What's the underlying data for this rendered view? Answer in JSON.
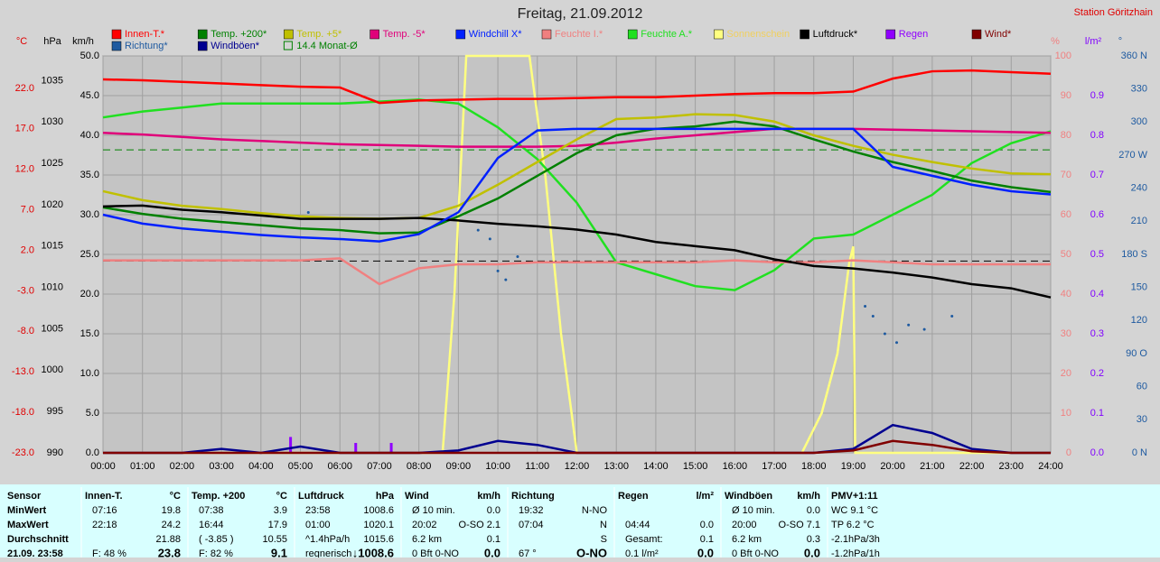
{
  "chart_data": {
    "type": "line",
    "title": "Freitag, 21.09.2012",
    "station": "Station Göritzhain",
    "xlim": [
      0,
      24
    ],
    "xticks": [
      {
        "value": 0,
        "label": "00:00"
      },
      {
        "value": 1,
        "label": "01:00"
      },
      {
        "value": 2,
        "label": "02:00"
      },
      {
        "value": 3,
        "label": "03:00"
      },
      {
        "value": 4,
        "label": "04:00"
      },
      {
        "value": 5,
        "label": "05:00"
      },
      {
        "value": 6,
        "label": "06:00"
      },
      {
        "value": 7,
        "label": "07:00"
      },
      {
        "value": 8,
        "label": "08:00"
      },
      {
        "value": 9,
        "label": "09:00"
      },
      {
        "value": 10,
        "label": "10:00"
      },
      {
        "value": 11,
        "label": "11:00"
      },
      {
        "value": 12,
        "label": "12:00"
      },
      {
        "value": 13,
        "label": "13:00"
      },
      {
        "value": 14,
        "label": "14:00"
      },
      {
        "value": 15,
        "label": "15:00"
      },
      {
        "value": 16,
        "label": "16:00"
      },
      {
        "value": 17,
        "label": "17:00"
      },
      {
        "value": 18,
        "label": "18:00"
      },
      {
        "value": 19,
        "label": "19:00"
      },
      {
        "value": 20,
        "label": "20:00"
      },
      {
        "value": 21,
        "label": "21:00"
      },
      {
        "value": 22,
        "label": "22:00"
      },
      {
        "value": 23,
        "label": "23:00"
      },
      {
        "value": 24,
        "label": "24:00"
      }
    ],
    "x": [
      0,
      1,
      2,
      3,
      4,
      5,
      6,
      7,
      8,
      9,
      10,
      11,
      12,
      13,
      14,
      15,
      16,
      17,
      18,
      19,
      20,
      21,
      22,
      23,
      24
    ],
    "grid": true,
    "grid_axis": 2,
    "axes": [
      {
        "unit": "°C",
        "side": "left",
        "color": "#e00000",
        "ylim": [
          -23,
          26
        ],
        "yticks": [
          {
            "value": -23,
            "label": "-23.0"
          },
          {
            "value": -18,
            "label": "-18.0"
          },
          {
            "value": -13,
            "label": "-13.0"
          },
          {
            "value": -8,
            "label": "-8.0"
          },
          {
            "value": -3,
            "label": "-3.0"
          },
          {
            "value": 2,
            "label": "2.0"
          },
          {
            "value": 7,
            "label": "7.0"
          },
          {
            "value": 12,
            "label": "12.0"
          },
          {
            "value": 17,
            "label": "17.0"
          },
          {
            "value": 22,
            "label": "22.0"
          }
        ]
      },
      {
        "unit": "hPa",
        "side": "left",
        "color": "#000000",
        "ylim": [
          990,
          1038
        ],
        "yticks": [
          990,
          995,
          1000,
          1005,
          1010,
          1015,
          1020,
          1025,
          1030,
          1035
        ]
      },
      {
        "unit": "km/h",
        "side": "left",
        "color": "#000000",
        "ylim": [
          0,
          50
        ],
        "yticks": [
          {
            "value": 0,
            "label": "0.0"
          },
          {
            "value": 5,
            "label": "5.0"
          },
          {
            "value": 10,
            "label": "10.0"
          },
          {
            "value": 15,
            "label": "15.0"
          },
          {
            "value": 20,
            "label": "20.0"
          },
          {
            "value": 25,
            "label": "25.0"
          },
          {
            "value": 30,
            "label": "30.0"
          },
          {
            "value": 35,
            "label": "35.0"
          },
          {
            "value": 40,
            "label": "40.0"
          },
          {
            "value": 45,
            "label": "45.0"
          },
          {
            "value": 50,
            "label": "50.0"
          }
        ]
      },
      {
        "unit": "%",
        "side": "right",
        "color": "#f08080",
        "ylim": [
          0,
          100
        ],
        "yticks": [
          0,
          10,
          20,
          30,
          40,
          50,
          60,
          70,
          80,
          90,
          100
        ]
      },
      {
        "unit": "l/m²",
        "side": "right",
        "color": "#8000ff",
        "ylim": [
          0,
          1
        ],
        "yticks": [
          {
            "value": 0,
            "label": "0.0"
          },
          0.1,
          0.2,
          0.3,
          0.4,
          0.5,
          0.6,
          0.7,
          0.8,
          0.9
        ]
      },
      {
        "unit": "°",
        "side": "right",
        "color": "#1e5aa0",
        "ylim": [
          0,
          360
        ],
        "yticks": [
          {
            "value": 0,
            "label": "0 N"
          },
          30,
          60,
          {
            "value": 90,
            "label": "90 O"
          },
          120,
          150,
          {
            "value": 180,
            "label": "180 S"
          },
          210,
          240,
          {
            "value": 270,
            "label": "270 W"
          },
          300,
          330,
          {
            "value": 360,
            "label": "360 N"
          }
        ]
      }
    ],
    "series": [
      {
        "name": "Innen-T.*",
        "color": "#ff0000",
        "axis": 0,
        "type": "line",
        "values": [
          23.1,
          23.0,
          22.8,
          22.6,
          22.4,
          22.2,
          22.1,
          20.2,
          20.5,
          20.6,
          20.7,
          20.7,
          20.8,
          20.9,
          20.9,
          21.1,
          21.3,
          21.4,
          21.4,
          21.6,
          23.2,
          24.1,
          24.2,
          24.0,
          23.8
        ]
      },
      {
        "name": "Temp. +200*",
        "color": "#008000",
        "axis": 0,
        "type": "line",
        "values": [
          7.3,
          6.5,
          5.9,
          5.5,
          5.1,
          4.7,
          4.5,
          4.1,
          4.2,
          6.2,
          8.4,
          11.2,
          14.0,
          16.2,
          17.0,
          17.3,
          17.9,
          17.3,
          15.7,
          14.2,
          12.9,
          11.8,
          10.6,
          9.8,
          9.2
        ]
      },
      {
        "name": "Temp. +5*",
        "color": "#c0c000",
        "axis": 0,
        "type": "line",
        "values": [
          9.3,
          8.2,
          7.5,
          7.1,
          6.6,
          6.2,
          6.0,
          5.9,
          6.0,
          7.5,
          10.1,
          12.9,
          15.7,
          18.2,
          18.4,
          18.8,
          18.7,
          17.9,
          16.2,
          14.9,
          13.8,
          12.9,
          12.1,
          11.5,
          11.4
        ]
      },
      {
        "name": "Temp. -5*",
        "color": "#e0007a",
        "axis": 0,
        "type": "line",
        "values": [
          16.5,
          16.3,
          16.0,
          15.7,
          15.5,
          15.3,
          15.1,
          15.0,
          14.9,
          14.8,
          14.8,
          14.8,
          14.9,
          15.3,
          15.8,
          16.2,
          16.6,
          17.0,
          17.0,
          17.0,
          16.9,
          16.8,
          16.7,
          16.6,
          16.5
        ]
      },
      {
        "name": "Windchill X*",
        "color": "#0020ff",
        "axis": 0,
        "type": "line",
        "values": [
          6.4,
          5.3,
          4.7,
          4.3,
          3.9,
          3.6,
          3.4,
          3.1,
          4.0,
          6.7,
          13.4,
          16.8,
          17.0,
          17.0,
          17.0,
          17.0,
          17.0,
          17.0,
          17.0,
          17.0,
          12.3,
          11.2,
          10.1,
          9.3,
          8.9
        ]
      },
      {
        "name": "Feuchte I.*",
        "color": "#f08080",
        "axis": 3,
        "type": "line",
        "values": [
          48.5,
          48.5,
          48.5,
          48.5,
          48.5,
          48.5,
          49,
          42.5,
          46.5,
          47.5,
          47.5,
          48,
          48,
          48,
          48,
          48,
          48.5,
          48,
          48,
          48.5,
          48,
          47.5,
          47.5,
          47.5,
          47.5
        ]
      },
      {
        "name": "Feuchte A.*",
        "color": "#20e020",
        "axis": 3,
        "type": "line",
        "values": [
          84.5,
          86,
          87,
          88,
          88,
          88,
          88,
          88.5,
          89,
          88,
          82,
          74,
          63,
          48,
          45,
          42,
          41,
          46,
          54,
          55,
          60,
          65,
          73,
          78,
          81
        ]
      },
      {
        "name": "Sonnenschein",
        "color": "#ffff80",
        "axis": 3,
        "type": "line",
        "x": [
          0,
          8.6,
          8.9,
          9.2,
          10.8,
          11.2,
          11.6,
          12,
          17.7,
          18.2,
          18.6,
          18.9,
          19.0,
          19.05,
          24
        ],
        "values": [
          0,
          0,
          40,
          100,
          100,
          70,
          30,
          0,
          0,
          10,
          25,
          48,
          52,
          0,
          0
        ]
      },
      {
        "name": "Luftdruck*",
        "color": "#000000",
        "axis": 1,
        "type": "line",
        "values": [
          1019.8,
          1019.9,
          1019.4,
          1019.1,
          1018.7,
          1018.3,
          1018.3,
          1018.3,
          1018.4,
          1018.1,
          1017.7,
          1017.4,
          1017.0,
          1016.4,
          1015.5,
          1015.0,
          1014.5,
          1013.4,
          1012.6,
          1012.3,
          1011.8,
          1011.2,
          1010.4,
          1009.9,
          1008.8
        ]
      },
      {
        "name": "Regen",
        "color": "#9000ff",
        "axis": 4,
        "type": "bar",
        "x": [
          4.75,
          6.4,
          7.3
        ],
        "values": [
          0.04,
          0.025,
          0.025
        ]
      },
      {
        "name": "Wind*",
        "color": "#800000",
        "axis": 2,
        "type": "line",
        "values": [
          0,
          0,
          0,
          0,
          0,
          0,
          0,
          0,
          0,
          0,
          0,
          0,
          0,
          0,
          0,
          0,
          0,
          0,
          0,
          0.3,
          1.5,
          1.0,
          0.2,
          0,
          0
        ]
      },
      {
        "name": "Richtung*",
        "color": "#1e5aa0",
        "axis": 5,
        "type": "scatter",
        "x": [
          5.2,
          9.5,
          9.8,
          10.0,
          10.2,
          10.5,
          19.3,
          19.5,
          19.8,
          20.1,
          20.4,
          20.8,
          21.5
        ],
        "values": [
          218,
          202,
          194,
          165,
          157,
          178,
          133,
          124,
          108,
          100,
          116,
          112,
          124
        ]
      },
      {
        "name": "Windböen*",
        "color": "#000090",
        "axis": 2,
        "type": "line",
        "values": [
          0,
          0,
          0,
          0.5,
          0,
          0.8,
          0,
          0,
          0,
          0.3,
          1.5,
          1.0,
          0,
          0,
          0,
          0,
          0,
          0,
          0,
          0.5,
          3.5,
          2.5,
          0.5,
          0,
          0
        ]
      }
    ],
    "reference_lines": [
      {
        "name": "14.4 Monat-Ø",
        "value": 14.4,
        "axis": 0,
        "color": "#008000"
      },
      {
        "value": 1013.2,
        "axis": 1,
        "color": "#000000"
      }
    ]
  },
  "table": {
    "row_labels": [
      "Sensor",
      "MinWert",
      "MaxWert",
      "Durchschnitt",
      "21.09. 23:58"
    ],
    "blocks": [
      {
        "title": "Innen-T.",
        "unit": "°C",
        "rows": [
          {
            "left": "07:16",
            "right": "19.8"
          },
          {
            "left": "22:18",
            "right": "24.2"
          },
          {
            "right": "21.88"
          },
          {
            "left": "F: 48 %",
            "right": "23.8"
          }
        ]
      },
      {
        "title": "Temp. +200",
        "unit": "°C",
        "rows": [
          {
            "left": "07:38",
            "right": "3.9"
          },
          {
            "left": "16:44",
            "right": "17.9"
          },
          {
            "left": "( -3.85 )",
            "right": "10.55"
          },
          {
            "left": "F: 82 %",
            "right": "9.1"
          }
        ]
      },
      {
        "title": "Luftdruck",
        "unit": "hPa",
        "rows": [
          {
            "left": "23:58",
            "right": "1008.6"
          },
          {
            "left": "01:00",
            "right": "1020.1"
          },
          {
            "left": "^1.4hPa/h",
            "right": "1015.6"
          },
          {
            "left": "regnerisch",
            "right": "↓1008.6"
          }
        ]
      },
      {
        "title": "Wind",
        "unit": "km/h",
        "rows": [
          {
            "left": "Ø 10 min.",
            "right": "0.0"
          },
          {
            "left": "20:02",
            "right": "O-SO 2.1"
          },
          {
            "left": "6.2 km",
            "right": "0.1"
          },
          {
            "left": "0 Bft 0-NO",
            "right": "0.0"
          }
        ]
      },
      {
        "title": "Richtung",
        "rows": [
          {
            "left": "19:32",
            "right": "N-NO"
          },
          {
            "left": "07:04",
            "right": "N"
          },
          {
            "right": "S"
          },
          {
            "left": "67 °",
            "right": "O-NO"
          }
        ]
      },
      {
        "title": "Regen",
        "unit": "l/m²",
        "rows": [
          {},
          {
            "left": "04:44",
            "right": "0.0"
          },
          {
            "left": "Gesamt:",
            "right": "0.1"
          },
          {
            "left": "0.1 l/m²",
            "right": "0.0"
          }
        ]
      },
      {
        "title": "Windböen",
        "unit": "km/h",
        "rows": [
          {
            "left": "Ø 10 min.",
            "right": "0.0"
          },
          {
            "left": "20:00",
            "right": "O-SO 7.1"
          },
          {
            "left": "6.2 km",
            "right": "0.3"
          },
          {
            "left": "0 Bft 0-NO",
            "right": "0.0"
          }
        ]
      },
      {
        "title": "PMV+1:11",
        "rows": [
          {
            "left": "WC 9.1 °C"
          },
          {
            "left": "TP 6.2 °C"
          },
          {
            "left": "-2.1hPa/3h"
          },
          {
            "left": "-1.2hPa/1h"
          }
        ]
      }
    ]
  }
}
